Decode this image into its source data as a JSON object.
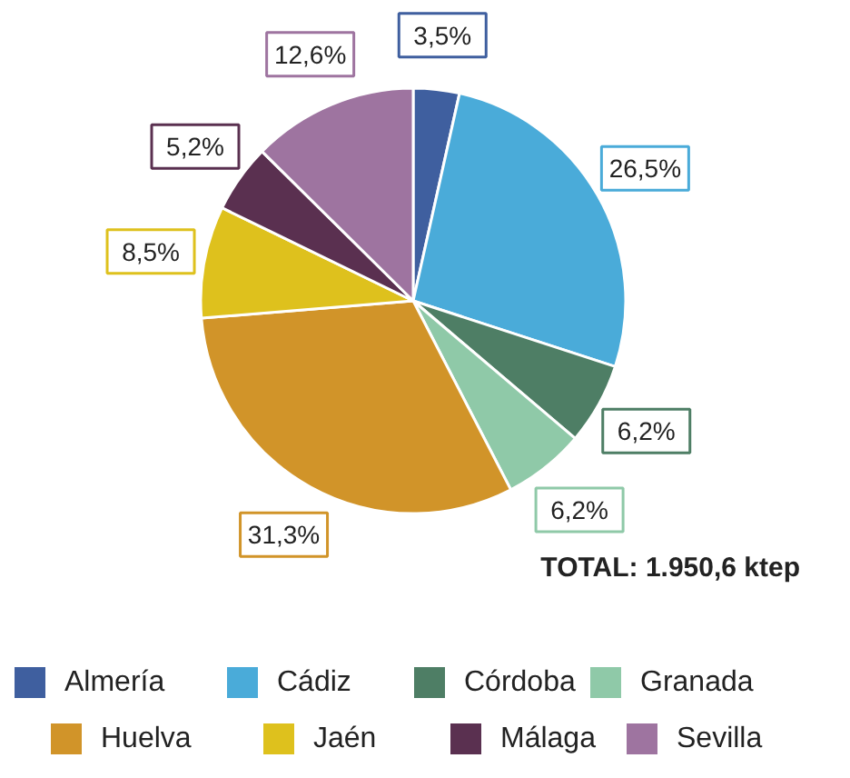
{
  "chart_data": {
    "type": "pie",
    "categories": [
      "Almería",
      "Cádiz",
      "Córdoba",
      "Granada",
      "Huelva",
      "Jaén",
      "Málaga",
      "Sevilla"
    ],
    "values": [
      3.5,
      26.5,
      6.2,
      6.2,
      31.3,
      8.5,
      5.2,
      12.6
    ],
    "colors": [
      "#3f5f9f",
      "#4aabd9",
      "#4e7e65",
      "#8fc9a8",
      "#d19429",
      "#dec11d",
      "#5a3050",
      "#9e74a0"
    ],
    "value_labels": [
      "3,5%",
      "26,5%",
      "6,2%",
      "6,2%",
      "31,3%",
      "8,5%",
      "5,2%",
      "12,6%"
    ],
    "annotations": [
      "TOTAL: 1.950,6 ktep"
    ],
    "legend": "bottom"
  }
}
